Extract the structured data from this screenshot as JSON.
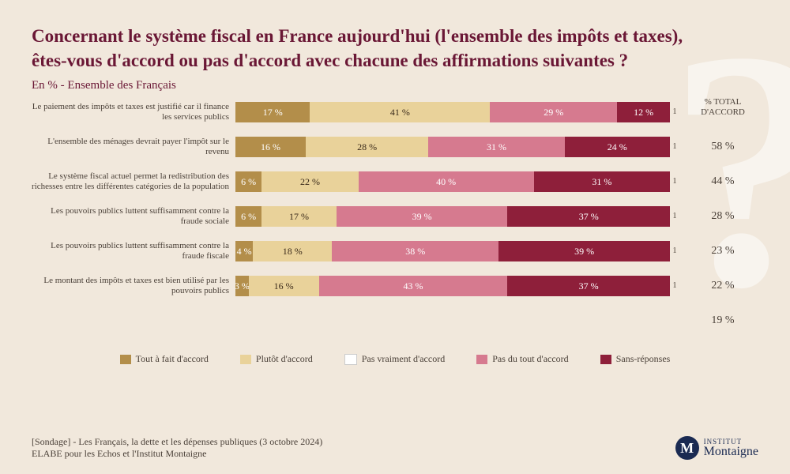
{
  "background_color": "#f1e8dc",
  "title_color": "#6a1735",
  "text_color": "#4a4038",
  "title": "Concernant le système fiscal en France aujourd'hui (l'ensemble des impôts et taxes), êtes-vous d'accord ou pas d'accord avec chacune des affirmations suivantes ?",
  "subtitle": "En % - Ensemble des Français",
  "total_header": "% TOTAL D'ACCORD",
  "watermark": "?",
  "chart": {
    "type": "stacked-bar-horizontal",
    "category_colors": [
      "#b38e4a",
      "#e9d29a",
      "#d67a8f",
      "#8e1f3a",
      "#4a1020"
    ],
    "text_on_segment": [
      "light",
      "dark",
      "light",
      "light",
      "light"
    ],
    "sans_reponses_label": "1",
    "rows": [
      {
        "label": "Le paiement des impôts et taxes est justifié car il finance les services publics",
        "values": [
          17,
          41,
          29,
          12,
          1
        ],
        "display": [
          "17 %",
          "41 %",
          "29 %",
          "12 %",
          ""
        ],
        "total": "58 %"
      },
      {
        "label": "L'ensemble des ménages devrait payer l'impôt sur le revenu",
        "values": [
          16,
          28,
          31,
          24,
          1
        ],
        "display": [
          "16 %",
          "28 %",
          "31 %",
          "24 %",
          ""
        ],
        "total": "44 %"
      },
      {
        "label": "Le système fiscal actuel permet la redistribution des richesses entre les différentes catégories de la population",
        "values": [
          6,
          22,
          40,
          31,
          1
        ],
        "display": [
          "6 %",
          "22 %",
          "40 %",
          "31 %",
          ""
        ],
        "total": "28 %"
      },
      {
        "label": "Les pouvoirs publics luttent suffisamment contre la fraude sociale",
        "values": [
          6,
          17,
          39,
          37,
          1
        ],
        "display": [
          "6 %",
          "17 %",
          "39 %",
          "37 %",
          ""
        ],
        "total": "23 %"
      },
      {
        "label": "Les pouvoirs publics luttent suffisamment contre la fraude fiscale",
        "values": [
          4,
          18,
          38,
          39,
          1
        ],
        "display": [
          "4 %",
          "18 %",
          "38 %",
          "39 %",
          ""
        ],
        "total": "22 %"
      },
      {
        "label": "Le montant des impôts et taxes est bien utilisé par les pouvoirs publics",
        "values": [
          3,
          16,
          43,
          37,
          1
        ],
        "display": [
          "3 %",
          "16 %",
          "43 %",
          "37 %",
          ""
        ],
        "total": "19 %"
      }
    ]
  },
  "legend": [
    {
      "label": "Tout à fait d'accord",
      "color": "#b38e4a"
    },
    {
      "label": "Plutôt d'accord",
      "color": "#e9d29a"
    },
    {
      "label": "Pas vraiment d'accord",
      "color": "#ffffff"
    },
    {
      "label": "Pas du tout d'accord",
      "color": "#d67a8f"
    },
    {
      "label": "Sans-réponses",
      "color": "#8e1f3a"
    }
  ],
  "source_line1": "[Sondage] - Les Français, la dette et les dépenses publiques (3 octobre 2024)",
  "source_line2": "ELABE pour les Echos et l'Institut Montaigne",
  "brand": {
    "badge_bg": "#1a2a52",
    "letter": "M",
    "line1": "INSTITUT",
    "line2": "Montaigne",
    "text_color": "#1a2a52"
  }
}
